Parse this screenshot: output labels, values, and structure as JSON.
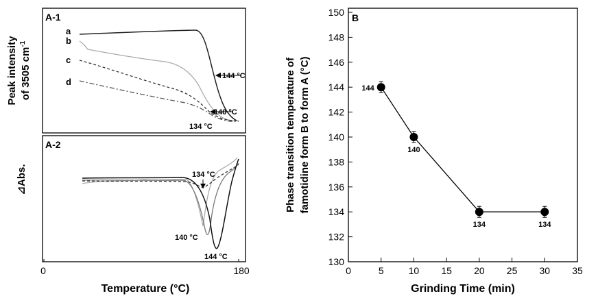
{
  "chart_data": [
    {
      "type": "line",
      "panel_label": "A-1",
      "ylabel_line1": "Peak intensity",
      "ylabel_line2": "of 3505 cm",
      "ylabel_sup": "-1",
      "series": [
        {
          "name": "a",
          "color": "#222222",
          "style": "solid"
        },
        {
          "name": "b",
          "color": "#aaaaaa",
          "style": "solid"
        },
        {
          "name": "c",
          "color": "#333333",
          "style": "dashed"
        },
        {
          "name": "d",
          "color": "#555555",
          "style": "dashdot"
        }
      ],
      "annotations": [
        {
          "text": "144 °C"
        },
        {
          "text": "140 °C"
        },
        {
          "text": "134 °C"
        }
      ]
    },
    {
      "type": "line",
      "panel_label": "A-2",
      "ylabel": "⊿Abs.",
      "xlabel": "Temperature (°C)",
      "xticks": [
        "0",
        "180"
      ],
      "xlim": [
        0,
        180
      ],
      "annotations": [
        {
          "text": "134 °C"
        },
        {
          "text": "140 °C"
        },
        {
          "text": "144 °C"
        }
      ]
    },
    {
      "type": "line",
      "panel_label": "B",
      "ylabel_line1": "Phase transition temperature of",
      "ylabel_line2": "famotidine form B to form A (°C)",
      "xlabel": "Grinding Time (min)",
      "xlim": [
        0,
        35
      ],
      "ylim": [
        130,
        150
      ],
      "xticks": [
        0,
        5,
        10,
        15,
        20,
        25,
        30,
        35
      ],
      "yticks": [
        130,
        132,
        134,
        136,
        138,
        140,
        142,
        144,
        146,
        148,
        150
      ],
      "x": [
        5,
        10,
        20,
        30
      ],
      "y": [
        144,
        140,
        134,
        134
      ],
      "point_labels": [
        "144",
        "140",
        "134",
        "134"
      ]
    }
  ]
}
